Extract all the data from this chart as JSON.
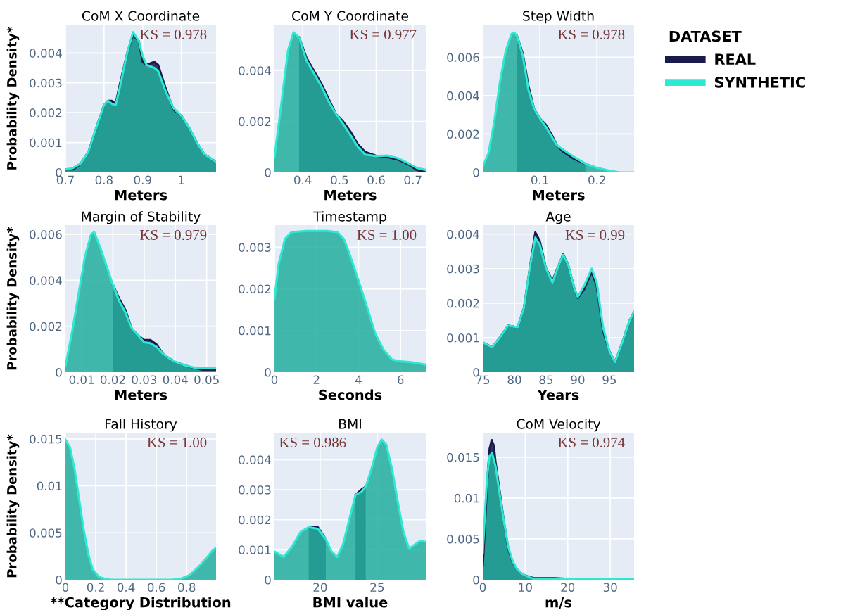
{
  "chart_data": [
    {
      "type": "area",
      "title": "CoM X Coordinate",
      "xlabel": "Meters",
      "ylabel": "Probability Density*",
      "xlim": [
        0.7,
        1.09
      ],
      "ylim": [
        0,
        0.00495
      ],
      "xticks": [
        0.7,
        0.8,
        0.9,
        1
      ],
      "yticks": [
        0,
        0.001,
        0.002,
        0.003,
        0.004
      ],
      "grid": true,
      "annotations": [
        "KS = 0.978"
      ],
      "series": [
        {
          "color": "#1a1a4e",
          "x": [
            0.7,
            0.72,
            0.74,
            0.76,
            0.78,
            0.8,
            0.81,
            0.82,
            0.83,
            0.84,
            0.86,
            0.875,
            0.89,
            0.9,
            0.91,
            0.93,
            0.94,
            0.96,
            0.98,
            1.0,
            1.02,
            1.04,
            1.06,
            1.09
          ],
          "values": [
            0.0001,
            0.0001,
            0.0003,
            0.0007,
            0.0015,
            0.00225,
            0.0024,
            0.0024,
            0.0023,
            0.0029,
            0.004,
            0.0046,
            0.0044,
            0.0037,
            0.0036,
            0.0037,
            0.0036,
            0.0028,
            0.0021,
            0.0019,
            0.0015,
            0.001,
            0.0006,
            0.00035
          ]
        },
        {
          "color": "#2ee8d2",
          "x": [
            0.7,
            0.72,
            0.74,
            0.76,
            0.78,
            0.8,
            0.81,
            0.82,
            0.83,
            0.84,
            0.86,
            0.875,
            0.89,
            0.9,
            0.91,
            0.93,
            0.94,
            0.96,
            0.98,
            1.0,
            1.02,
            1.04,
            1.06,
            1.09
          ],
          "values": [
            0.0001,
            0.00015,
            0.0003,
            0.0007,
            0.0015,
            0.00225,
            0.0024,
            0.0023,
            0.00225,
            0.0028,
            0.004,
            0.0047,
            0.0044,
            0.0039,
            0.0036,
            0.0035,
            0.0034,
            0.0027,
            0.00215,
            0.0019,
            0.0015,
            0.001,
            0.0006,
            0.00035
          ]
        }
      ]
    },
    {
      "type": "area",
      "title": "CoM Y Coordinate",
      "xlabel": "Meters",
      "xlim": [
        0.323,
        0.735
      ],
      "ylim": [
        0,
        0.0058
      ],
      "xticks": [
        0.4,
        0.5,
        0.6,
        0.7
      ],
      "yticks": [
        0,
        0.002,
        0.004
      ],
      "grid": true,
      "annotations": [
        "KS = 0.977"
      ],
      "series": [
        {
          "color": "#1a1a4e",
          "x": [
            0.39,
            0.41,
            0.43,
            0.45,
            0.47,
            0.49,
            0.51,
            0.53,
            0.55,
            0.57,
            0.6,
            0.63,
            0.66,
            0.69,
            0.71,
            0.735
          ],
          "values": [
            0.0053,
            0.0045,
            0.004,
            0.0035,
            0.0029,
            0.0023,
            0.002,
            0.0016,
            0.0011,
            0.0008,
            0.00065,
            0.0006,
            0.0005,
            0.0003,
            0.0001,
            0
          ]
        },
        {
          "color": "#2ee8d2",
          "x": [
            0.323,
            0.34,
            0.36,
            0.375,
            0.39,
            0.41,
            0.43,
            0.45,
            0.47,
            0.49,
            0.51,
            0.53,
            0.55,
            0.57,
            0.6,
            0.63,
            0.66,
            0.69,
            0.71,
            0.735
          ],
          "values": [
            0.0006,
            0.0025,
            0.0048,
            0.0055,
            0.0053,
            0.0044,
            0.0039,
            0.0034,
            0.0028,
            0.0023,
            0.0019,
            0.00146,
            0.001,
            0.0007,
            0.00064,
            0.00066,
            0.00055,
            0.00034,
            0.00018,
            0.0001
          ]
        }
      ]
    },
    {
      "type": "area",
      "title": "Step Width",
      "xlabel": "Meters",
      "xlim": [
        0,
        0.265
      ],
      "ylim": [
        0,
        0.0077
      ],
      "xticks": [
        0.1,
        0.2
      ],
      "yticks": [
        0,
        0.002,
        0.004,
        0.006
      ],
      "grid": true,
      "annotations": [
        "KS = 0.978"
      ],
      "legend": "right",
      "legend_title": "DATASET",
      "series": [
        {
          "name": "REAL",
          "color": "#1a1a4e",
          "x": [
            0.06,
            0.07,
            0.08,
            0.09,
            0.1,
            0.11,
            0.12,
            0.13,
            0.14,
            0.16,
            0.18
          ],
          "values": [
            0.0071,
            0.0062,
            0.0045,
            0.0033,
            0.0028,
            0.0025,
            0.002,
            0.0014,
            0.0011,
            0.0007,
            0.00045
          ]
        },
        {
          "name": "SYNTHETIC",
          "color": "#2ee8d2",
          "x": [
            0,
            0.01,
            0.02,
            0.03,
            0.04,
            0.05,
            0.055,
            0.06,
            0.07,
            0.08,
            0.09,
            0.1,
            0.11,
            0.12,
            0.13,
            0.14,
            0.16,
            0.18,
            0.2,
            0.22,
            0.24,
            0.265
          ],
          "values": [
            0.0003,
            0.001,
            0.0026,
            0.0047,
            0.0063,
            0.0072,
            0.0073,
            0.0071,
            0.0061,
            0.0043,
            0.0033,
            0.0028,
            0.0024,
            0.0019,
            0.0014,
            0.0012,
            0.0008,
            0.00045,
            0.00024,
            0.0001,
            0,
            0
          ]
        }
      ]
    },
    {
      "type": "area",
      "title": "Margin of Stability",
      "xlabel": "Meters",
      "ylabel": "Probability Density*",
      "xlim": [
        0.0048,
        0.053
      ],
      "ylim": [
        0,
        0.0064
      ],
      "xticks": [
        0.01,
        0.02,
        0.03,
        0.04,
        0.05
      ],
      "yticks": [
        0,
        0.002,
        0.004,
        0.006
      ],
      "grid": true,
      "annotations": [
        "KS = 0.979"
      ],
      "series": [
        {
          "color": "#1a1a4e",
          "x": [
            0.02,
            0.022,
            0.024,
            0.026,
            0.028,
            0.03,
            0.032,
            0.034,
            0.036,
            0.038,
            0.04,
            0.043,
            0.046,
            0.049,
            0.053
          ],
          "values": [
            0.0038,
            0.0032,
            0.0027,
            0.0019,
            0.0016,
            0.0014,
            0.0014,
            0.0012,
            0.0008,
            0.0006,
            0.00044,
            0.0003,
            0.00018,
            0.0001,
            0.0001
          ]
        },
        {
          "color": "#2ee8d2",
          "x": [
            0.0048,
            0.007,
            0.009,
            0.011,
            0.013,
            0.014,
            0.016,
            0.018,
            0.02,
            0.022,
            0.024,
            0.026,
            0.028,
            0.03,
            0.032,
            0.034,
            0.036,
            0.038,
            0.04,
            0.043,
            0.046,
            0.049,
            0.053
          ],
          "values": [
            0.00026,
            0.0018,
            0.0034,
            0.005,
            0.006,
            0.0061,
            0.0054,
            0.0046,
            0.0038,
            0.0031,
            0.0026,
            0.0019,
            0.0016,
            0.0013,
            0.00126,
            0.0011,
            0.0008,
            0.0006,
            0.00044,
            0.0003,
            0.0002,
            0.00017,
            0.00019
          ]
        }
      ]
    },
    {
      "type": "area",
      "title": "Timestamp",
      "xlabel": "Seconds",
      "xlim": [
        0,
        7.2
      ],
      "ylim": [
        0,
        0.00353
      ],
      "xticks": [
        0,
        2,
        4,
        6
      ],
      "yticks": [
        0,
        0.001,
        0.002,
        0.003
      ],
      "grid": true,
      "annotations": [
        "KS = 1.00"
      ],
      "series": [
        {
          "color": "#2ee8d2",
          "x": [
            0,
            0.2,
            0.5,
            0.8,
            1.5,
            2.5,
            3,
            3.3,
            3.6,
            4,
            4.4,
            4.8,
            5.2,
            5.6,
            6,
            6.5,
            7,
            7.2
          ],
          "values": [
            0.00177,
            0.0026,
            0.0032,
            0.00336,
            0.00339,
            0.00339,
            0.00336,
            0.0032,
            0.0028,
            0.0022,
            0.00157,
            0.00092,
            0.00053,
            0.0003,
            0.00026,
            0.00024,
            0.0002,
            0.00018
          ]
        }
      ]
    },
    {
      "type": "area",
      "title": "Age",
      "xlabel": "Years",
      "xlim": [
        75,
        98.9
      ],
      "ylim": [
        0,
        0.00426
      ],
      "xticks": [
        75,
        80,
        85,
        90,
        95
      ],
      "yticks": [
        0,
        0.001,
        0.002,
        0.003,
        0.004
      ],
      "grid": true,
      "annotations": [
        "KS = 0.99"
      ],
      "series": [
        {
          "color": "#1a1a4e",
          "x": [
            75,
            76.5,
            78,
            79,
            80.5,
            81.5,
            82.5,
            83.3,
            84,
            85,
            86,
            87,
            87.7,
            88.5,
            89.5,
            90,
            91,
            92.2,
            93,
            94,
            95,
            95.9,
            97,
            98.2,
            98.9
          ],
          "values": [
            0.00086,
            0.00072,
            0.00108,
            0.00135,
            0.0013,
            0.00186,
            0.0031,
            0.00405,
            0.0038,
            0.003,
            0.00265,
            0.0031,
            0.00342,
            0.0031,
            0.0024,
            0.00215,
            0.0024,
            0.0029,
            0.0025,
            0.0012,
            0.0006,
            0.00029,
            0.00084,
            0.0015,
            0.00174
          ]
        },
        {
          "color": "#2ee8d2",
          "x": [
            75,
            76.5,
            78,
            79,
            80.5,
            81.5,
            82.5,
            83.3,
            84,
            85,
            86,
            87,
            87.7,
            88.5,
            89.5,
            90,
            91,
            92.2,
            93,
            94,
            95,
            95.9,
            97,
            98.2,
            98.9
          ],
          "values": [
            0.00086,
            0.00072,
            0.00108,
            0.00135,
            0.0013,
            0.00186,
            0.0031,
            0.0039,
            0.0037,
            0.003,
            0.0026,
            0.0031,
            0.0034,
            0.0031,
            0.0024,
            0.00218,
            0.0025,
            0.003,
            0.0026,
            0.0013,
            0.0006,
            0.00029,
            0.00084,
            0.0015,
            0.00174
          ]
        }
      ]
    },
    {
      "type": "area",
      "title": "Fall History",
      "xlabel": "**Category Distribution",
      "ylabel": "Probability Density*",
      "xlim": [
        0,
        0.994
      ],
      "ylim": [
        0,
        0.01566
      ],
      "xticks": [
        0,
        0.2,
        0.4,
        0.6,
        0.8
      ],
      "yticks": [
        0,
        0.005,
        0.01,
        0.015
      ],
      "grid": true,
      "annotations": [
        "KS = 1.00"
      ],
      "series": [
        {
          "color": "#2ee8d2",
          "x": [
            0,
            0.03,
            0.06,
            0.09,
            0.12,
            0.15,
            0.18,
            0.22,
            0.26,
            0.3,
            0.7,
            0.76,
            0.82,
            0.88,
            0.93,
            0.97,
            0.994
          ],
          "values": [
            0.0149,
            0.0141,
            0.0118,
            0.0086,
            0.0054,
            0.0028,
            0.0011,
            0.0003,
            0.0001,
            0,
            0,
            0.0001,
            0.0005,
            0.0014,
            0.0023,
            0.0031,
            0.0034
          ]
        }
      ]
    },
    {
      "type": "area",
      "title": "BMI",
      "xlabel": "BMI value",
      "xlim": [
        16,
        29.26
      ],
      "ylim": [
        0,
        0.0049
      ],
      "xticks": [
        20,
        25
      ],
      "yticks": [
        0,
        0.001,
        0.002,
        0.003,
        0.004
      ],
      "grid": true,
      "annotations": [
        "KS = 0.986"
      ],
      "series": [
        {
          "color": "#1a1a4e",
          "x": [
            19,
            19.8,
            20.5
          ],
          "values": [
            0.00175,
            0.00175,
            0.00135
          ]
        },
        {
          "color": "#1a1a4e",
          "x": [
            23.1,
            23.6,
            24
          ],
          "values": [
            0.00283,
            0.003,
            0.0031
          ]
        },
        {
          "color": "#2ee8d2",
          "x": [
            16,
            16.8,
            17.5,
            18.3,
            19,
            19.8,
            20.5,
            21,
            21.5,
            22,
            22.6,
            23.1,
            23.6,
            24,
            24.5,
            25,
            25.4,
            25.8,
            26.3,
            26.8,
            27.3,
            27.8,
            28.3,
            28.8,
            29.26
          ],
          "values": [
            0.00094,
            0.00076,
            0.00108,
            0.0016,
            0.00175,
            0.0017,
            0.00135,
            0.00094,
            0.00076,
            0.00117,
            0.00207,
            0.00283,
            0.00292,
            0.0031,
            0.00369,
            0.0044,
            0.00467,
            0.0045,
            0.00369,
            0.0026,
            0.0016,
            0.00103,
            0.00117,
            0.0013,
            0.00126
          ]
        }
      ]
    },
    {
      "type": "area",
      "title": "CoM Velocity",
      "xlabel": "m/s",
      "xlim": [
        0,
        35.6
      ],
      "ylim": [
        0,
        0.018
      ],
      "xticks": [
        0,
        10,
        20,
        30
      ],
      "yticks": [
        0,
        0.005,
        0.01,
        0.015
      ],
      "grid": true,
      "annotations": [
        "KS = 0.974"
      ],
      "series": [
        {
          "color": "#1a1a4e",
          "x": [
            0,
            0.5,
            1,
            1.6,
            2.1,
            2.6,
            3,
            4,
            5,
            6,
            7,
            8,
            9,
            10,
            12,
            17,
            20,
            35.6
          ],
          "values": [
            0.0017,
            0.0064,
            0.0117,
            0.016,
            0.0171,
            0.0164,
            0.0144,
            0.0107,
            0.007,
            0.0038,
            0.0022,
            0.0013,
            0.0008,
            0.0005,
            0.0002,
            0.0002,
            0.0001,
            0.0001
          ]
        },
        {
          "color": "#2ee8d2",
          "x": [
            0,
            0.5,
            1,
            1.6,
            2.2,
            3,
            4,
            5,
            6,
            7,
            8,
            9,
            10,
            12,
            15,
            18,
            20,
            35.6
          ],
          "values": [
            0.0033,
            0.008,
            0.0124,
            0.0152,
            0.0155,
            0.0139,
            0.0104,
            0.007,
            0.004,
            0.0023,
            0.0013,
            0.0008,
            0.0005,
            0.0001,
            0.0001,
            0.0001,
            0.0001,
            0.0001
          ]
        }
      ]
    }
  ]
}
